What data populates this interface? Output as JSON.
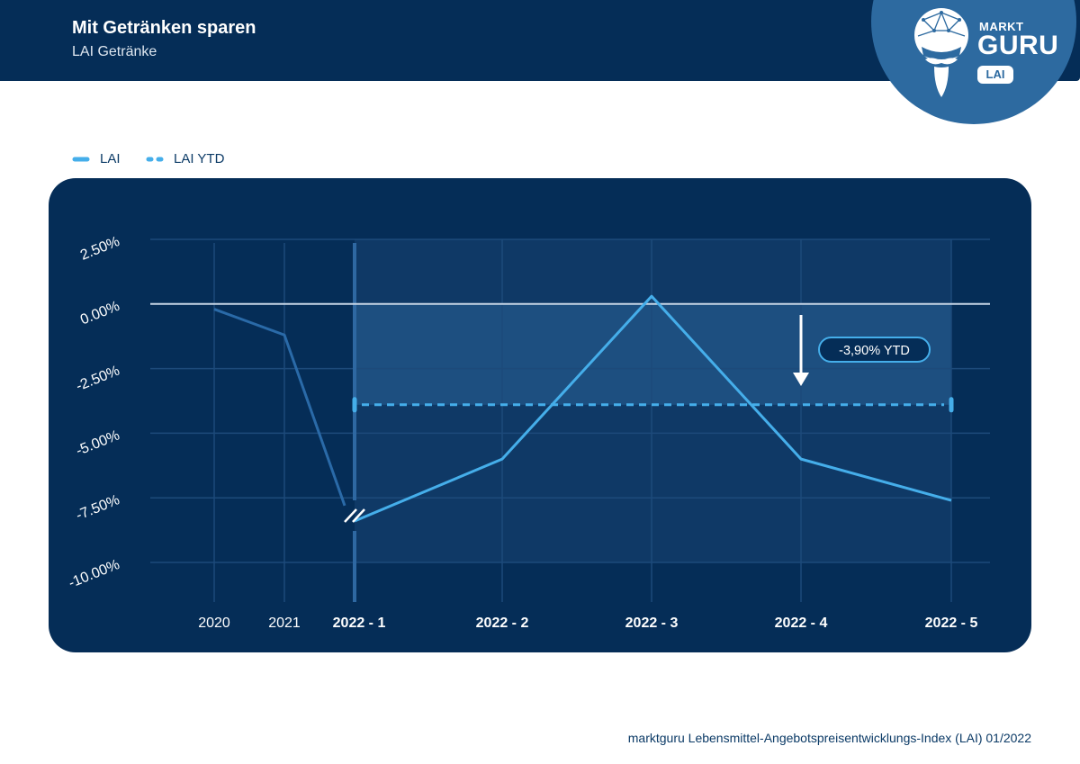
{
  "header": {
    "title": "Mit Getränken sparen",
    "subtitle": "LAI Getränke"
  },
  "logo": {
    "brand_top": "MARKT",
    "brand_main": "GURU",
    "badge": "LAI"
  },
  "footer": {
    "source": "marktguru Lebensmittel-Angebotspreisentwicklungs-Index (LAI) 01/2022"
  },
  "colors": {
    "header_bg": "#052d57",
    "panel_bg": "#052d57",
    "lai_line": "#45aeea",
    "history_line": "#2a6aa8",
    "ytd_line": "#45aeea",
    "logo_bg": "#2d6aa0"
  },
  "chart_data": {
    "type": "line",
    "title": "Mit Getränken sparen",
    "subtitle": "LAI Getränke",
    "legend_position": "top-left",
    "grid": true,
    "ylim": [
      -10.0,
      2.5
    ],
    "y_ticks": [
      "2.50%",
      "0.00%",
      "-2.50%",
      "-5.00%",
      "-7.50%",
      "-10.00%"
    ],
    "y_tick_values": [
      2.5,
      0.0,
      -2.5,
      -5.0,
      -7.5,
      -10.0
    ],
    "categories": [
      "2020",
      "2021",
      "2022 - 1",
      "2022 - 2",
      "2022 - 3",
      "2022 - 4",
      "2022 - 5"
    ],
    "series": [
      {
        "name": "LAI",
        "history": {
          "x": [
            "2020",
            "2021"
          ],
          "values": [
            -0.2,
            -1.2
          ]
        },
        "x": [
          "2022 - 1",
          "2022 - 2",
          "2022 - 3",
          "2022 - 4",
          "2022 - 5"
        ],
        "values": [
          -8.4,
          -6.0,
          0.3,
          -6.0,
          -7.6
        ]
      },
      {
        "name": "LAI YTD",
        "x": [
          "2022 - 1",
          "2022 - 5"
        ],
        "values": [
          -3.9,
          -3.9
        ],
        "style": "dashed"
      }
    ],
    "annotations": [
      {
        "text": "-3,90% YTD"
      }
    ]
  }
}
